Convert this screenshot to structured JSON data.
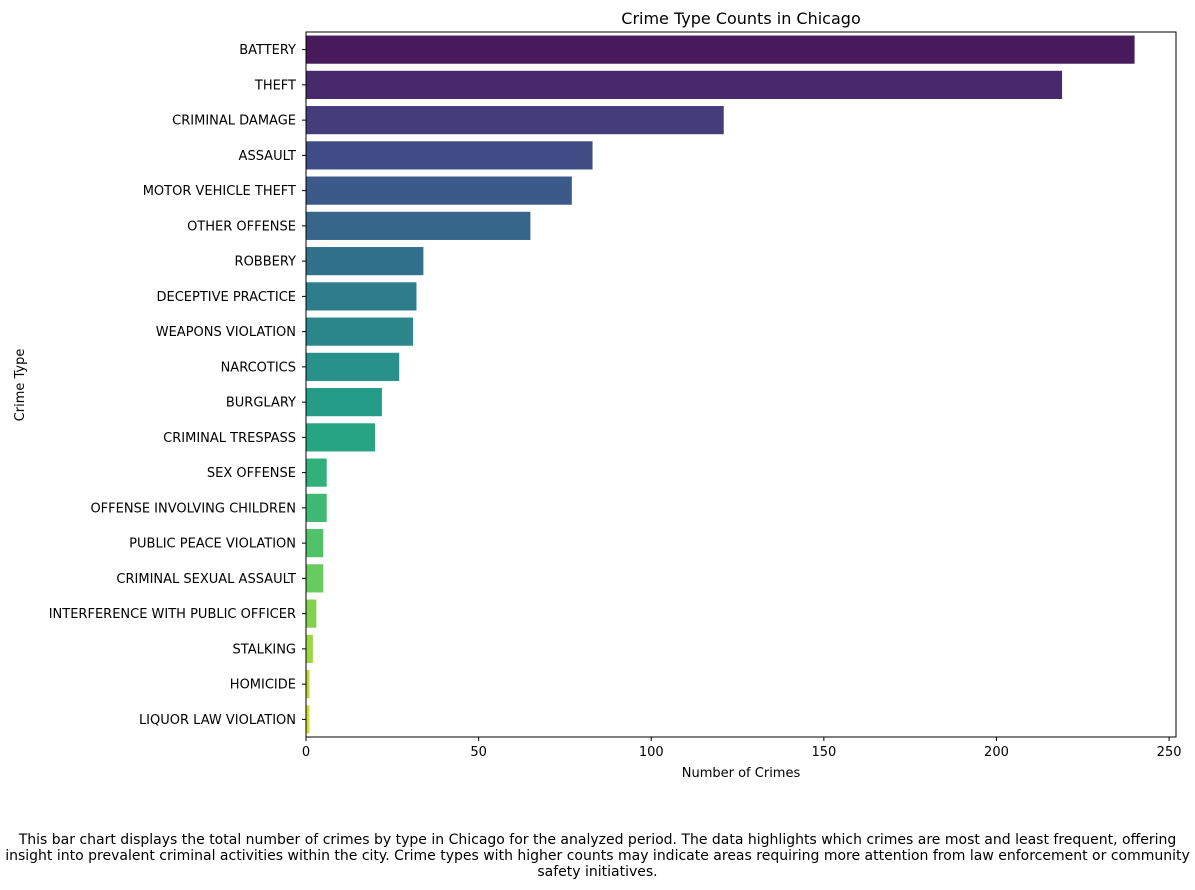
{
  "chart_data": {
    "type": "bar",
    "orientation": "horizontal",
    "title": "Crime Type Counts in Chicago",
    "xlabel": "Number of Crimes",
    "ylabel": "Crime Type",
    "xlim": [
      0,
      252
    ],
    "xticks": [
      0,
      50,
      100,
      150,
      200,
      250
    ],
    "grid": false,
    "palette": "viridis",
    "categories": [
      "BATTERY",
      "THEFT",
      "CRIMINAL DAMAGE",
      "ASSAULT",
      "MOTOR VEHICLE THEFT",
      "OTHER OFFENSE",
      "ROBBERY",
      "DECEPTIVE PRACTICE",
      "WEAPONS VIOLATION",
      "NARCOTICS",
      "BURGLARY",
      "CRIMINAL TRESPASS",
      "SEX OFFENSE",
      "OFFENSE INVOLVING CHILDREN",
      "PUBLIC PEACE VIOLATION",
      "CRIMINAL SEXUAL ASSAULT",
      "INTERFERENCE WITH PUBLIC OFFICER",
      "STALKING",
      "HOMICIDE",
      "LIQUOR LAW VIOLATION"
    ],
    "values": [
      240,
      219,
      121,
      83,
      77,
      65,
      34,
      32,
      31,
      27,
      22,
      20,
      6,
      6,
      5,
      5,
      3,
      2,
      1,
      1
    ],
    "colors": [
      "#481a5c",
      "#482a6c",
      "#453c7c",
      "#404c85",
      "#3b5989",
      "#36668a",
      "#31718c",
      "#2d7d8c",
      "#2b878c",
      "#28918b",
      "#259c87",
      "#27a583",
      "#31b07b",
      "#3fb974",
      "#52c26a",
      "#69ca5d",
      "#81d14e",
      "#9cd740",
      "#b7dc30",
      "#d0df26"
    ]
  },
  "caption": "This bar chart displays the total number of crimes by type in Chicago for the analyzed period. The data highlights which crimes are most and least frequent, offering insight into prevalent criminal activities within the city. Crime types with higher counts may indicate areas requiring more attention from law enforcement or community safety initiatives."
}
